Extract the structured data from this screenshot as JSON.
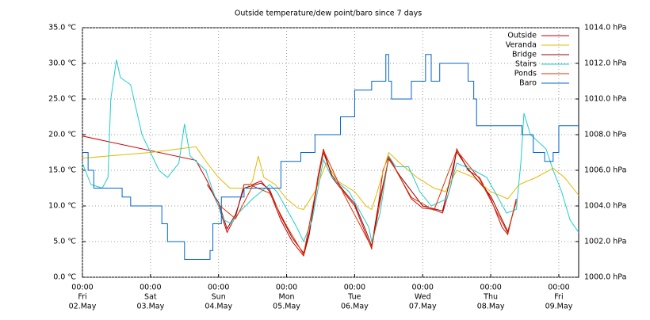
{
  "chart_data": {
    "type": "line",
    "title": "Outside temperature/dew point/baro since 7 days",
    "xlim": [
      0,
      175
    ],
    "xticks": [
      {
        "value": 0,
        "label": "00:00"
      },
      {
        "value": 24,
        "label": "00:00"
      },
      {
        "value": 48,
        "label": "00:00"
      },
      {
        "value": 72,
        "label": "00:00"
      },
      {
        "value": 96,
        "label": "00:00"
      },
      {
        "value": 120,
        "label": "00:00"
      },
      {
        "value": 144,
        "label": "00:00"
      },
      {
        "value": 168,
        "label": "00:00"
      }
    ],
    "xtick_days": [
      "Fri",
      "Sat",
      "Sun",
      "Mon",
      "Tue",
      "Wed",
      "Thu",
      "Fri"
    ],
    "xtick_dates": [
      "02.May",
      "03.May",
      "04.May",
      "05.May",
      "06.May",
      "07.May",
      "08.May",
      "09.May"
    ],
    "ylim": [
      0,
      35
    ],
    "yticks": [
      {
        "value": 0,
        "label": "0.0 ℃"
      },
      {
        "value": 5,
        "label": "5.0 ℃"
      },
      {
        "value": 10,
        "label": "10.0 ℃"
      },
      {
        "value": 15,
        "label": "15.0 ℃"
      },
      {
        "value": 20,
        "label": "20.0 ℃"
      },
      {
        "value": 25,
        "label": "25.0 ℃"
      },
      {
        "value": 30,
        "label": "30.0 ℃"
      },
      {
        "value": 35,
        "label": "35.0 ℃"
      }
    ],
    "y2lim": [
      1000,
      1014
    ],
    "y2ticks": [
      {
        "value": 1000,
        "label": "1000.0 hPa"
      },
      {
        "value": 1002,
        "label": "1002.0 hPa"
      },
      {
        "value": 1004,
        "label": "1004.0 hPa"
      },
      {
        "value": 1006,
        "label": "1006.0 hPa"
      },
      {
        "value": 1008,
        "label": "1008.0 hPa"
      },
      {
        "value": 1010,
        "label": "1010.0 hPa"
      },
      {
        "value": 1012,
        "label": "1012.0 hPa"
      },
      {
        "value": 1014,
        "label": "1014.0 hPa"
      }
    ],
    "grid": true,
    "legend": "top-right",
    "series": [
      {
        "name": "Outside",
        "color": "#cc0000",
        "x": [
          0,
          40,
          44,
          48,
          51,
          54,
          57,
          60,
          63,
          66,
          70,
          74,
          78,
          80,
          83,
          85,
          88,
          92,
          96,
          100,
          102,
          104,
          106,
          108,
          112,
          116,
          120,
          124,
          127,
          130,
          132,
          136,
          140,
          144,
          148,
          150,
          153
        ],
        "values": [
          19.8,
          16.4,
          13.5,
          10,
          6.3,
          8.5,
          13,
          13,
          13.5,
          12,
          8,
          5,
          3,
          6,
          14,
          18,
          14,
          12,
          10,
          6,
          4,
          9,
          15,
          17,
          14,
          11,
          9.7,
          9.5,
          9,
          13,
          18,
          15,
          14,
          11,
          7,
          6,
          11
        ]
      },
      {
        "name": "Veranda",
        "color": "#e6b800",
        "x": [
          0,
          24,
          40,
          44,
          48,
          52,
          58,
          60,
          62,
          64,
          68,
          72,
          76,
          78,
          82,
          86,
          90,
          96,
          100,
          102,
          104,
          108,
          112,
          118,
          124,
          128,
          132,
          138,
          144,
          150,
          154,
          160,
          166,
          170,
          175
        ],
        "values": [
          16.7,
          17.5,
          18.3,
          16,
          14,
          12.5,
          12.5,
          13.5,
          17,
          14,
          13,
          11,
          9.7,
          9.5,
          12,
          16,
          13.5,
          12,
          10,
          9.5,
          12,
          17.5,
          16,
          14,
          12.5,
          12,
          15,
          14,
          12,
          11,
          13,
          14,
          15.3,
          14,
          11.5
        ]
      },
      {
        "name": "Bridge",
        "color": "#990000",
        "x": [
          44,
          48,
          51,
          54,
          57,
          63,
          66,
          70,
          74,
          78,
          80,
          83,
          85,
          88,
          92,
          96,
          100,
          102,
          104,
          108,
          112,
          120,
          127,
          132,
          136,
          144,
          150,
          153
        ],
        "values": [
          13,
          10.5,
          6.8,
          8.8,
          12.5,
          13.2,
          12.3,
          8.5,
          5.5,
          3.4,
          6.3,
          13.5,
          17.5,
          14.3,
          12.2,
          10.3,
          6.5,
          4.4,
          9.3,
          16.6,
          14.2,
          10,
          9.3,
          17.6,
          15.2,
          11.4,
          6.4,
          10.6
        ]
      },
      {
        "name": "Stairs",
        "color": "#22cccc",
        "x": [
          0,
          3,
          7,
          9,
          10,
          12,
          13.4,
          17,
          21,
          27,
          30,
          34,
          36,
          38,
          43.5,
          47,
          50,
          52.5,
          55,
          60,
          66,
          68.6,
          75.6,
          78,
          81,
          85,
          88,
          94,
          101,
          102,
          105,
          108,
          110.5,
          115,
          119,
          123,
          128.6,
          132,
          138,
          142.6,
          149.6,
          153,
          154.6,
          155.7,
          158,
          163.5,
          166,
          169,
          172,
          175
        ],
        "values": [
          16,
          13,
          12.5,
          14,
          25,
          30.5,
          28,
          27,
          20,
          15,
          14,
          16,
          21.5,
          17,
          15,
          11,
          8,
          7.5,
          9,
          11,
          13,
          12,
          7,
          5,
          8,
          16.5,
          14,
          12,
          7,
          5,
          9,
          17,
          15.5,
          15.5,
          12,
          10,
          11,
          16,
          15,
          14,
          9,
          9.5,
          16,
          23,
          20,
          18,
          15,
          12,
          8,
          6.3
        ]
      },
      {
        "name": "Ponds",
        "color": "#dd3300",
        "x": [
          48,
          54,
          60,
          66,
          72,
          78,
          85,
          92,
          102,
          108,
          116,
          124,
          132,
          140,
          150,
          153
        ],
        "values": [
          10.2,
          8.2,
          12.8,
          11.8,
          7.2,
          3.2,
          17.8,
          11.8,
          4.2,
          16.8,
          11.2,
          9.4,
          17.8,
          13.8,
          6.2,
          10.8
        ]
      },
      {
        "name": "Baro",
        "color": "#0066cc",
        "axis": "y2",
        "step": true,
        "x": [
          0,
          2,
          4,
          14,
          17,
          28,
          30,
          36,
          45,
          46,
          49,
          57,
          70,
          77,
          82,
          91,
          96,
          102,
          107,
          108,
          109,
          116,
          121,
          123,
          126,
          136,
          138,
          139,
          155,
          159,
          163,
          166,
          168,
          175
        ],
        "values": [
          1007,
          1006,
          1005,
          1004.5,
          1004,
          1003,
          1002,
          1001,
          1001.5,
          1003,
          1004.5,
          1005,
          1006.5,
          1007,
          1008,
          1009,
          1010.5,
          1011,
          1012.5,
          1011,
          1010,
          1011,
          1012.5,
          1011,
          1012,
          1011,
          1010,
          1008.5,
          1008,
          1007,
          1006.5,
          1007,
          1008.5,
          1008.5
        ]
      }
    ]
  }
}
